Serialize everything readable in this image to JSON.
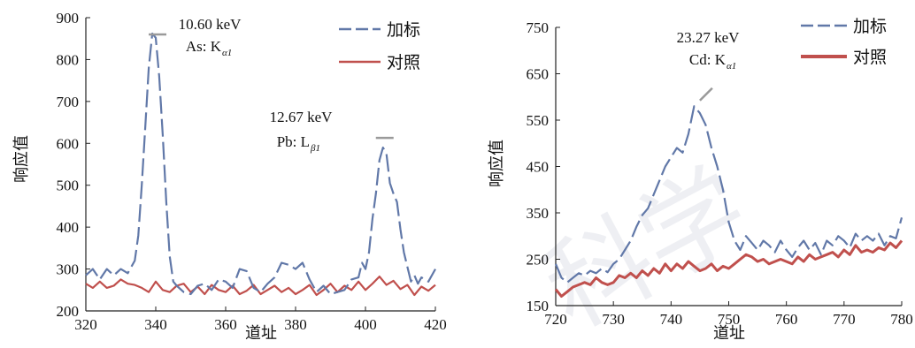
{
  "watermark": {
    "text": "科学"
  },
  "chart_data": [
    {
      "type": "line",
      "xlabel": "道址",
      "ylabel": "响应值",
      "xlim": [
        320,
        420
      ],
      "ylim": [
        200,
        900
      ],
      "xticks": [
        320,
        340,
        360,
        380,
        400,
        420
      ],
      "yticks": [
        200,
        300,
        400,
        500,
        600,
        700,
        800,
        900
      ],
      "legend": "top-right",
      "grid": false,
      "series": [
        {
          "name": "加标",
          "color": "#6178a8",
          "dash": "dashed",
          "points": [
            [
              320,
              285
            ],
            [
              322,
              300
            ],
            [
              324,
              275
            ],
            [
              326,
              300
            ],
            [
              328,
              285
            ],
            [
              330,
              300
            ],
            [
              332,
              290
            ],
            [
              334,
              320
            ],
            [
              335,
              380
            ],
            [
              336,
              500
            ],
            [
              337,
              640
            ],
            [
              338,
              780
            ],
            [
              339,
              862
            ],
            [
              340,
              852
            ],
            [
              341,
              760
            ],
            [
              342,
              620
            ],
            [
              343,
              460
            ],
            [
              344,
              330
            ],
            [
              345,
              270
            ],
            [
              346,
              260
            ],
            [
              348,
              245
            ],
            [
              350,
              240
            ],
            [
              352,
              260
            ],
            [
              354,
              265
            ],
            [
              356,
              250
            ],
            [
              358,
              275
            ],
            [
              360,
              270
            ],
            [
              362,
              255
            ],
            [
              364,
              300
            ],
            [
              366,
              295
            ],
            [
              368,
              255
            ],
            [
              370,
              245
            ],
            [
              372,
              265
            ],
            [
              374,
              280
            ],
            [
              376,
              315
            ],
            [
              378,
              310
            ],
            [
              380,
              300
            ],
            [
              382,
              315
            ],
            [
              384,
              275
            ],
            [
              386,
              245
            ],
            [
              388,
              260
            ],
            [
              390,
              240
            ],
            [
              392,
              245
            ],
            [
              394,
              250
            ],
            [
              396,
              275
            ],
            [
              398,
              280
            ],
            [
              399,
              315
            ],
            [
              400,
              300
            ],
            [
              401,
              340
            ],
            [
              402,
              420
            ],
            [
              403,
              480
            ],
            [
              404,
              560
            ],
            [
              405,
              590
            ],
            [
              406,
              575
            ],
            [
              407,
              505
            ],
            [
              408,
              480
            ],
            [
              409,
              460
            ],
            [
              410,
              395
            ],
            [
              411,
              340
            ],
            [
              412,
              305
            ],
            [
              413,
              270
            ],
            [
              414,
              285
            ],
            [
              415,
              265
            ],
            [
              416,
              280
            ],
            [
              418,
              270
            ],
            [
              420,
              300
            ]
          ]
        },
        {
          "name": "对照",
          "color": "#c0504d",
          "dash": "solid",
          "points": [
            [
              320,
              265
            ],
            [
              322,
              255
            ],
            [
              324,
              270
            ],
            [
              326,
              255
            ],
            [
              328,
              260
            ],
            [
              330,
              275
            ],
            [
              332,
              265
            ],
            [
              334,
              262
            ],
            [
              336,
              255
            ],
            [
              338,
              245
            ],
            [
              340,
              270
            ],
            [
              342,
              250
            ],
            [
              344,
              245
            ],
            [
              346,
              260
            ],
            [
              348,
              265
            ],
            [
              350,
              245
            ],
            [
              352,
              258
            ],
            [
              354,
              240
            ],
            [
              356,
              262
            ],
            [
              358,
              250
            ],
            [
              360,
              245
            ],
            [
              362,
              260
            ],
            [
              364,
              240
            ],
            [
              366,
              248
            ],
            [
              368,
              262
            ],
            [
              370,
              240
            ],
            [
              372,
              250
            ],
            [
              374,
              260
            ],
            [
              376,
              245
            ],
            [
              378,
              255
            ],
            [
              380,
              240
            ],
            [
              382,
              250
            ],
            [
              384,
              262
            ],
            [
              386,
              238
            ],
            [
              388,
              250
            ],
            [
              390,
              265
            ],
            [
              392,
              245
            ],
            [
              394,
              260
            ],
            [
              396,
              250
            ],
            [
              398,
              270
            ],
            [
              400,
              250
            ],
            [
              402,
              265
            ],
            [
              404,
              282
            ],
            [
              406,
              262
            ],
            [
              408,
              272
            ],
            [
              410,
              252
            ],
            [
              412,
              262
            ],
            [
              414,
              238
            ],
            [
              416,
              258
            ],
            [
              418,
              248
            ],
            [
              420,
              262
            ]
          ]
        }
      ],
      "annotations": [
        {
          "energy": "10.60 keV",
          "element": "As: K",
          "sub": "α1",
          "x": 340,
          "y": 862
        },
        {
          "energy": "12.67 keV",
          "element": "Pb: L",
          "sub": "β1",
          "x": 405,
          "y": 615
        }
      ]
    },
    {
      "type": "line",
      "xlabel": "道址",
      "ylabel": "响应值",
      "xlim": [
        720,
        780
      ],
      "ylim": [
        150,
        750
      ],
      "xticks": [
        720,
        730,
        740,
        750,
        760,
        770,
        780
      ],
      "yticks": [
        150,
        250,
        350,
        450,
        550,
        650,
        750
      ],
      "legend": "top-right",
      "grid": false,
      "series": [
        {
          "name": "加标",
          "color": "#6178a8",
          "dash": "dashed",
          "points": [
            [
              720,
              240
            ],
            [
              721,
              210
            ],
            [
              722,
              200
            ],
            [
              723,
              210
            ],
            [
              724,
              220
            ],
            [
              725,
              215
            ],
            [
              726,
              225
            ],
            [
              727,
              220
            ],
            [
              728,
              230
            ],
            [
              729,
              222
            ],
            [
              730,
              240
            ],
            [
              731,
              250
            ],
            [
              732,
              270
            ],
            [
              733,
              290
            ],
            [
              734,
              320
            ],
            [
              735,
              345
            ],
            [
              736,
              360
            ],
            [
              737,
              390
            ],
            [
              738,
              420
            ],
            [
              739,
              450
            ],
            [
              740,
              470
            ],
            [
              741,
              490
            ],
            [
              742,
              480
            ],
            [
              743,
              520
            ],
            [
              744,
              580
            ],
            [
              745,
              565
            ],
            [
              746,
              540
            ],
            [
              747,
              490
            ],
            [
              748,
              450
            ],
            [
              749,
              400
            ],
            [
              750,
              330
            ],
            [
              751,
              290
            ],
            [
              752,
              270
            ],
            [
              753,
              300
            ],
            [
              754,
              285
            ],
            [
              755,
              270
            ],
            [
              756,
              290
            ],
            [
              757,
              280
            ],
            [
              758,
              265
            ],
            [
              759,
              290
            ],
            [
              760,
              270
            ],
            [
              761,
              255
            ],
            [
              762,
              275
            ],
            [
              763,
              290
            ],
            [
              764,
              270
            ],
            [
              765,
              285
            ],
            [
              766,
              260
            ],
            [
              767,
              290
            ],
            [
              768,
              280
            ],
            [
              769,
              300
            ],
            [
              770,
              290
            ],
            [
              771,
              275
            ],
            [
              772,
              305
            ],
            [
              773,
              290
            ],
            [
              774,
              300
            ],
            [
              775,
              290
            ],
            [
              776,
              305
            ],
            [
              777,
              280
            ],
            [
              778,
              300
            ],
            [
              779,
              295
            ],
            [
              780,
              340
            ]
          ]
        },
        {
          "name": "对照",
          "color": "#c0504d",
          "dash": "solid",
          "points": [
            [
              720,
              185
            ],
            [
              721,
              170
            ],
            [
              722,
              180
            ],
            [
              723,
              190
            ],
            [
              724,
              195
            ],
            [
              725,
              200
            ],
            [
              726,
              195
            ],
            [
              727,
              210
            ],
            [
              728,
              200
            ],
            [
              729,
              195
            ],
            [
              730,
              200
            ],
            [
              731,
              215
            ],
            [
              732,
              210
            ],
            [
              733,
              220
            ],
            [
              734,
              210
            ],
            [
              735,
              225
            ],
            [
              736,
              215
            ],
            [
              737,
              230
            ],
            [
              738,
              220
            ],
            [
              739,
              240
            ],
            [
              740,
              225
            ],
            [
              741,
              240
            ],
            [
              742,
              230
            ],
            [
              743,
              245
            ],
            [
              744,
              235
            ],
            [
              745,
              225
            ],
            [
              746,
              230
            ],
            [
              747,
              240
            ],
            [
              748,
              225
            ],
            [
              749,
              235
            ],
            [
              750,
              230
            ],
            [
              751,
              240
            ],
            [
              752,
              250
            ],
            [
              753,
              260
            ],
            [
              754,
              255
            ],
            [
              755,
              245
            ],
            [
              756,
              250
            ],
            [
              757,
              240
            ],
            [
              758,
              245
            ],
            [
              759,
              250
            ],
            [
              760,
              245
            ],
            [
              761,
              240
            ],
            [
              762,
              255
            ],
            [
              763,
              245
            ],
            [
              764,
              260
            ],
            [
              765,
              250
            ],
            [
              766,
              255
            ],
            [
              767,
              260
            ],
            [
              768,
              265
            ],
            [
              769,
              255
            ],
            [
              770,
              270
            ],
            [
              771,
              260
            ],
            [
              772,
              280
            ],
            [
              773,
              265
            ],
            [
              774,
              270
            ],
            [
              775,
              265
            ],
            [
              776,
              275
            ],
            [
              777,
              270
            ],
            [
              778,
              285
            ],
            [
              779,
              275
            ],
            [
              780,
              290
            ]
          ]
        }
      ],
      "annotations": [
        {
          "energy": "23.27 keV",
          "element": "Cd: K",
          "sub": "α1",
          "x": 745,
          "y": 600
        }
      ]
    }
  ]
}
